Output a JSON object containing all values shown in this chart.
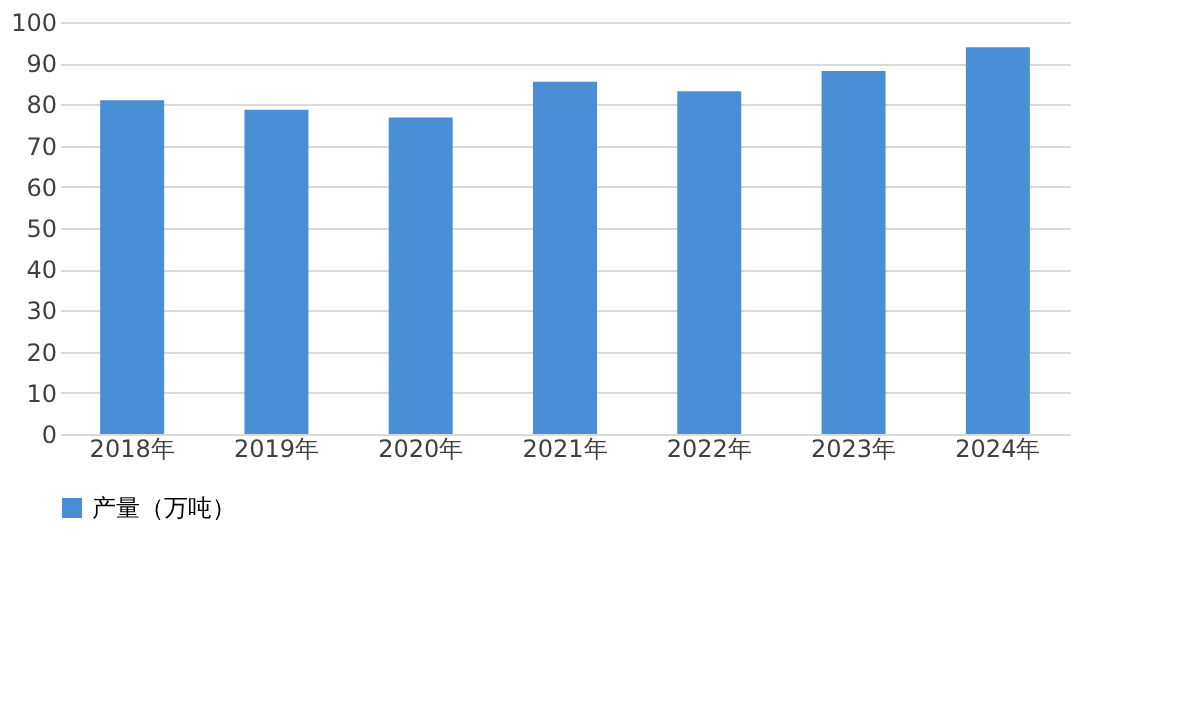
{
  "chart_data": {
    "type": "bar",
    "categories": [
      "2018年",
      "2019年",
      "2020年",
      "2021年",
      "2022年",
      "2023年",
      "2024年"
    ],
    "series": [
      {
        "name": "产量（万吨）",
        "color": "#4a8fd6",
        "values": [
          81,
          78.7,
          76.8,
          85.5,
          83.2,
          88.1,
          93.9
        ]
      }
    ],
    "ylim": [
      0,
      100
    ],
    "yticks": [
      0,
      10,
      20,
      30,
      40,
      50,
      60,
      70,
      80,
      90,
      100
    ],
    "grid": "y",
    "legend": "bottom"
  }
}
